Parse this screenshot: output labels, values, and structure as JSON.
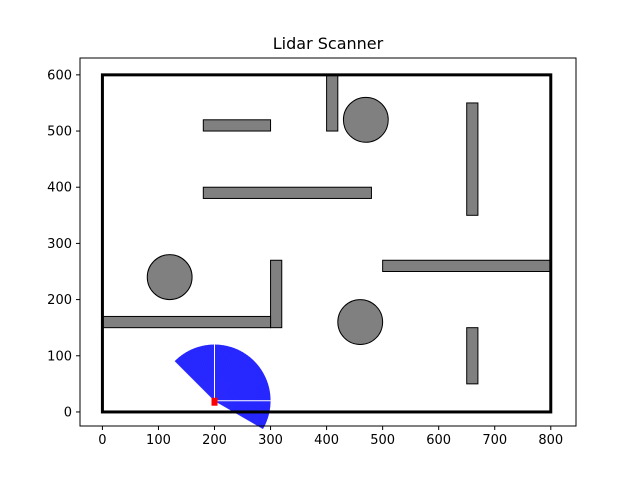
{
  "chart_data": {
    "type": "scatter",
    "title": "Lidar Scanner",
    "xlabel": "",
    "ylabel": "",
    "xlim": [
      -40,
      845
    ],
    "ylim": [
      -25,
      630
    ],
    "xticks": [
      0,
      100,
      200,
      300,
      400,
      500,
      600,
      700,
      800
    ],
    "yticks": [
      0,
      100,
      200,
      300,
      400,
      500,
      600
    ],
    "grid": false,
    "boundary": {
      "x0": 0,
      "y0": 0,
      "x1": 800,
      "y1": 600
    },
    "walls": [
      {
        "x": 180,
        "y": 500,
        "w": 120,
        "h": 20
      },
      {
        "x": 400,
        "y": 500,
        "w": 20,
        "h": 100
      },
      {
        "x": 180,
        "y": 380,
        "w": 300,
        "h": 20
      },
      {
        "x": 650,
        "y": 350,
        "w": 20,
        "h": 200
      },
      {
        "x": 500,
        "y": 250,
        "w": 300,
        "h": 20
      },
      {
        "x": 300,
        "y": 150,
        "w": 20,
        "h": 120
      },
      {
        "x": 0,
        "y": 150,
        "w": 300,
        "h": 20
      },
      {
        "x": 650,
        "y": 50,
        "w": 20,
        "h": 100
      }
    ],
    "circles": [
      {
        "cx": 470,
        "cy": 520,
        "r": 40
      },
      {
        "cx": 120,
        "cy": 240,
        "r": 40
      },
      {
        "cx": 460,
        "cy": 160,
        "r": 40
      }
    ],
    "robot": {
      "x": 200,
      "y": 20,
      "color": "#ff0000"
    },
    "scan": {
      "origin": [
        200,
        20
      ],
      "range": 100,
      "start_deg": -30,
      "end_deg": 135,
      "color": "#0000ff"
    },
    "colors": {
      "obstacle": "#808080",
      "boundary": "#000000"
    }
  }
}
